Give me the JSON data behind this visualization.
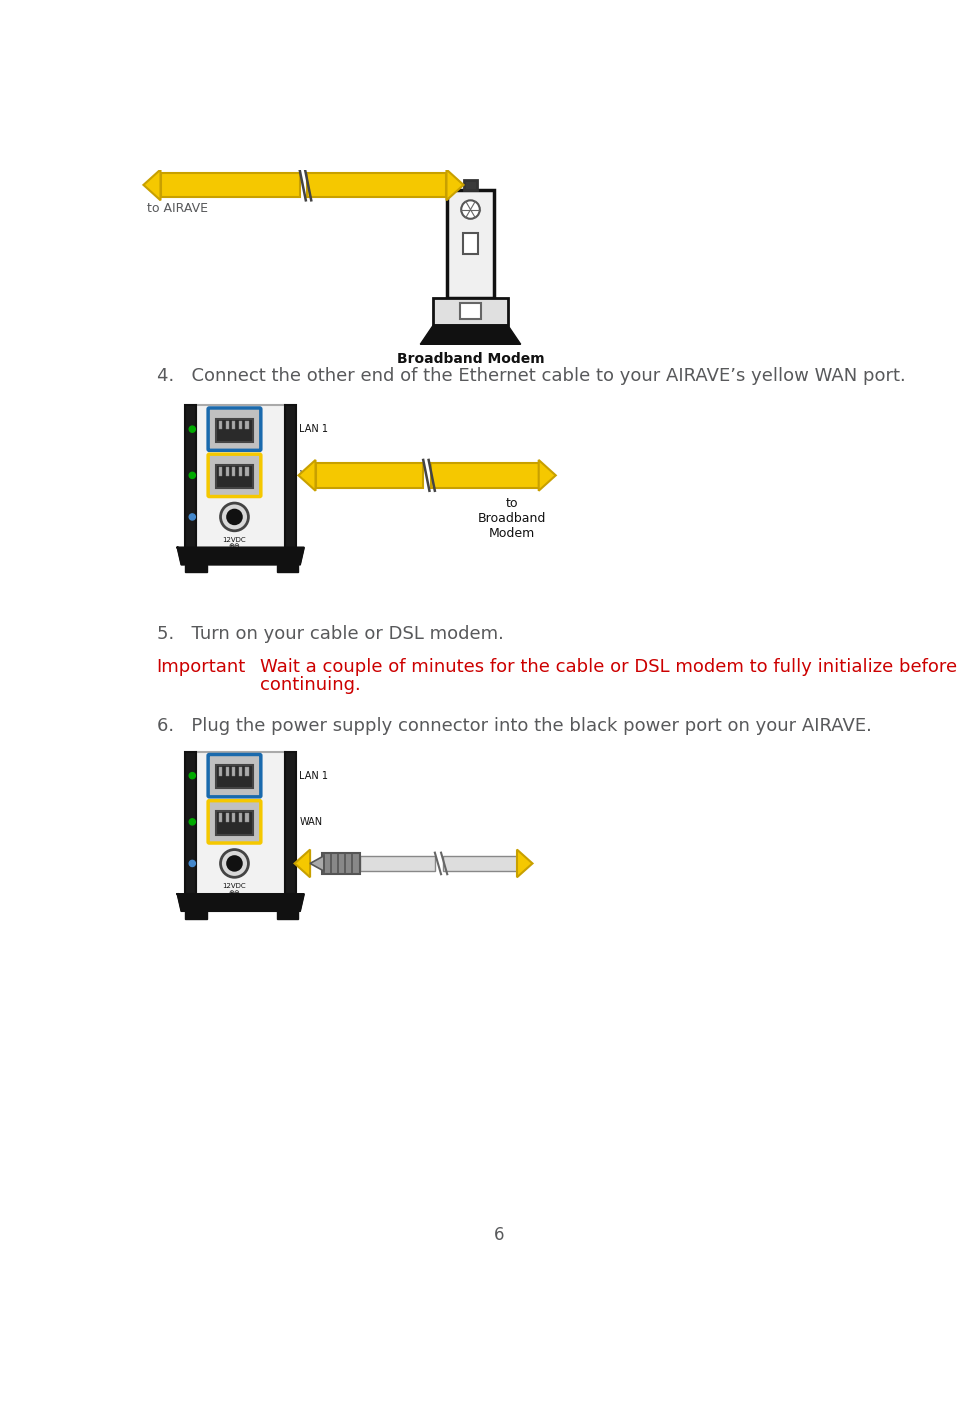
{
  "bg_color": "#ffffff",
  "step4_text": "4.   Connect the other end of the Ethernet cable to your AIRAVE’s yellow WAN port.",
  "step5_text": "5.   Turn on your cable or DSL modem.",
  "step6_text": "6.   Plug the power supply connector into the black power port on your AIRAVE.",
  "important_label": "Important",
  "important_body1": "Wait a couple of minutes for the cable or DSL modem to fully initialize before",
  "important_body2": "continuing.",
  "page_number": "6",
  "text_color": "#58595b",
  "red_color": "#cc0000",
  "yellow_color": "#f5c800",
  "yellow_dark": "#c8a000",
  "blue_color": "#1a6aad",
  "green_color": "#00aa00",
  "blue_led": "#4488cc",
  "black_color": "#111111",
  "gray_color": "#888888",
  "lightgray": "#d8d8d8",
  "darkgray": "#444444",
  "port_bg": "#c0c0c0",
  "body_bg": "#f2f2f2",
  "modem_body_bg": "#f0f0f0"
}
